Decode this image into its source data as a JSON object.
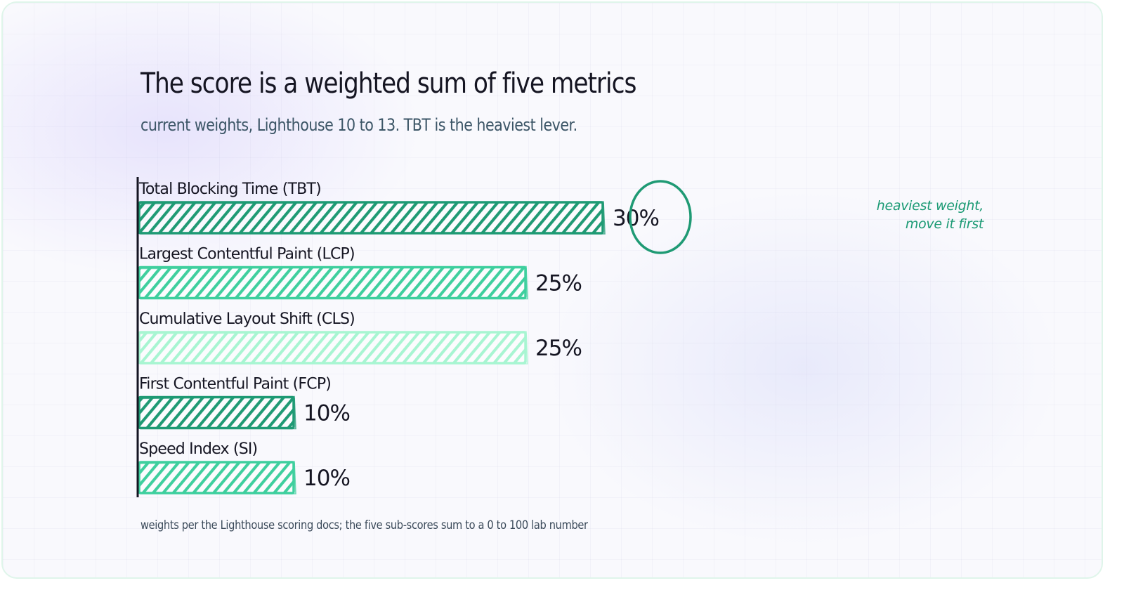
{
  "chart_data": {
    "type": "bar",
    "orientation": "horizontal",
    "title": "The score is a weighted sum of five metrics",
    "subtitle": "current weights, Lighthouse 10 to 13. TBT is the heaviest lever.",
    "categories": [
      "Total Blocking Time (TBT)",
      "Largest Contentful Paint (LCP)",
      "Cumulative Layout Shift (CLS)",
      "First Contentful Paint (FCP)",
      "Speed Index (SI)"
    ],
    "values": [
      30,
      25,
      25,
      10,
      10
    ],
    "value_labels": [
      "30%",
      "25%",
      "25%",
      "10%",
      "10%"
    ],
    "colors": [
      "#1f9a74",
      "#3fcf9e",
      "#a8f5d2",
      "#1f9a74",
      "#3fcf9e"
    ],
    "xlim": [
      0,
      30
    ],
    "grid": false,
    "highlight": {
      "category": "Total Blocking Time (TBT)",
      "note": [
        "heaviest weight,",
        "move it first"
      ]
    },
    "footnote": "weights per the Lighthouse scoring docs; the five sub-scores sum to a 0 to 100 lab number"
  }
}
